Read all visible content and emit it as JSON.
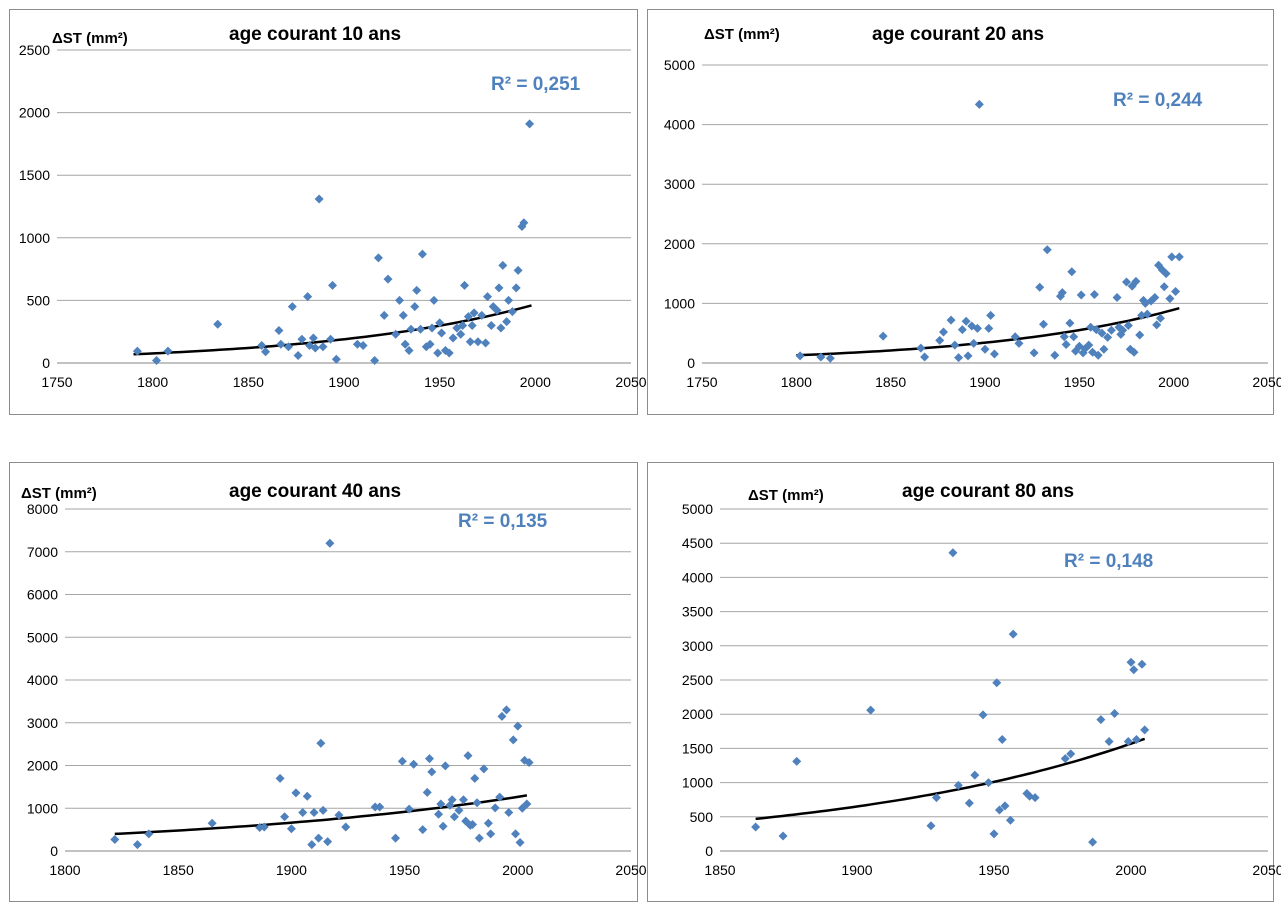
{
  "colors": {
    "point": "#4f81bd",
    "trend": "#000000",
    "grid": "#a6a6a6",
    "r2": "#4f81bd"
  },
  "chart_data": [
    {
      "type": "scatter",
      "title": "age courant 10 ans",
      "ylabel": "ΔST (mm²)",
      "xlabel": "",
      "annotation": "R² = 0,251",
      "xlim": [
        1750,
        2050
      ],
      "xticks": [
        1750,
        1800,
        1850,
        1900,
        1950,
        2000,
        2050
      ],
      "ylim": [
        0,
        2500
      ],
      "yticks": [
        0,
        500,
        1000,
        1500,
        2000,
        2500
      ],
      "trend": {
        "type": "exponential",
        "x": [
          1790,
          1998
        ],
        "y": [
          70,
          460
        ]
      },
      "points": [
        [
          1792,
          95
        ],
        [
          1802,
          20
        ],
        [
          1808,
          95
        ],
        [
          1834,
          310
        ],
        [
          1857,
          140
        ],
        [
          1859,
          90
        ],
        [
          1866,
          260
        ],
        [
          1867,
          150
        ],
        [
          1871,
          130
        ],
        [
          1873,
          450
        ],
        [
          1876,
          60
        ],
        [
          1878,
          190
        ],
        [
          1881,
          530
        ],
        [
          1882,
          140
        ],
        [
          1884,
          200
        ],
        [
          1885,
          120
        ],
        [
          1887,
          1310
        ],
        [
          1889,
          130
        ],
        [
          1893,
          190
        ],
        [
          1894,
          620
        ],
        [
          1896,
          30
        ],
        [
          1907,
          150
        ],
        [
          1910,
          140
        ],
        [
          1916,
          20
        ],
        [
          1918,
          840
        ],
        [
          1921,
          380
        ],
        [
          1923,
          670
        ],
        [
          1927,
          230
        ],
        [
          1929,
          500
        ],
        [
          1931,
          380
        ],
        [
          1932,
          150
        ],
        [
          1934,
          100
        ],
        [
          1935,
          270
        ],
        [
          1937,
          450
        ],
        [
          1938,
          580
        ],
        [
          1940,
          270
        ],
        [
          1941,
          870
        ],
        [
          1943,
          130
        ],
        [
          1945,
          150
        ],
        [
          1946,
          280
        ],
        [
          1947,
          500
        ],
        [
          1949,
          80
        ],
        [
          1950,
          320
        ],
        [
          1951,
          240
        ],
        [
          1953,
          100
        ],
        [
          1955,
          80
        ],
        [
          1957,
          200
        ],
        [
          1959,
          280
        ],
        [
          1961,
          230
        ],
        [
          1962,
          300
        ],
        [
          1963,
          620
        ],
        [
          1965,
          370
        ],
        [
          1966,
          170
        ],
        [
          1967,
          300
        ],
        [
          1968,
          400
        ],
        [
          1970,
          170
        ],
        [
          1972,
          380
        ],
        [
          1974,
          160
        ],
        [
          1975,
          530
        ],
        [
          1977,
          300
        ],
        [
          1978,
          450
        ],
        [
          1980,
          420
        ],
        [
          1981,
          600
        ],
        [
          1982,
          280
        ],
        [
          1983,
          780
        ],
        [
          1985,
          330
        ],
        [
          1986,
          500
        ],
        [
          1988,
          410
        ],
        [
          1990,
          600
        ],
        [
          1991,
          740
        ],
        [
          1993,
          1090
        ],
        [
          1994,
          1120
        ],
        [
          1997,
          1910
        ]
      ]
    },
    {
      "type": "scatter",
      "title": "age courant 20 ans",
      "ylabel": "ΔST (mm²)",
      "xlabel": "",
      "annotation": "R² = 0,244",
      "xlim": [
        1750,
        2050
      ],
      "xticks": [
        1750,
        1800,
        1850,
        1900,
        1950,
        2000,
        2050
      ],
      "ylim": [
        0,
        5000
      ],
      "yticks": [
        0,
        1000,
        2000,
        3000,
        4000,
        5000
      ],
      "trend": {
        "type": "exponential",
        "x": [
          1800,
          2003
        ],
        "y": [
          130,
          920
        ]
      },
      "points": [
        [
          1802,
          120
        ],
        [
          1813,
          100
        ],
        [
          1818,
          80
        ],
        [
          1846,
          450
        ],
        [
          1866,
          250
        ],
        [
          1868,
          100
        ],
        [
          1876,
          380
        ],
        [
          1878,
          520
        ],
        [
          1882,
          720
        ],
        [
          1884,
          300
        ],
        [
          1886,
          90
        ],
        [
          1888,
          560
        ],
        [
          1890,
          700
        ],
        [
          1891,
          120
        ],
        [
          1893,
          620
        ],
        [
          1894,
          330
        ],
        [
          1896,
          580
        ],
        [
          1897,
          4340
        ],
        [
          1900,
          230
        ],
        [
          1902,
          580
        ],
        [
          1903,
          800
        ],
        [
          1905,
          150
        ],
        [
          1916,
          440
        ],
        [
          1918,
          330
        ],
        [
          1926,
          170
        ],
        [
          1929,
          1270
        ],
        [
          1931,
          650
        ],
        [
          1933,
          1900
        ],
        [
          1937,
          130
        ],
        [
          1940,
          1120
        ],
        [
          1941,
          1180
        ],
        [
          1942,
          440
        ],
        [
          1943,
          310
        ],
        [
          1945,
          670
        ],
        [
          1946,
          1530
        ],
        [
          1947,
          440
        ],
        [
          1948,
          200
        ],
        [
          1950,
          280
        ],
        [
          1951,
          1140
        ],
        [
          1952,
          170
        ],
        [
          1953,
          240
        ],
        [
          1955,
          300
        ],
        [
          1956,
          600
        ],
        [
          1957,
          180
        ],
        [
          1958,
          1150
        ],
        [
          1959,
          560
        ],
        [
          1960,
          130
        ],
        [
          1962,
          500
        ],
        [
          1963,
          230
        ],
        [
          1965,
          430
        ],
        [
          1967,
          550
        ],
        [
          1970,
          1100
        ],
        [
          1971,
          600
        ],
        [
          1972,
          480
        ],
        [
          1973,
          550
        ],
        [
          1975,
          1360
        ],
        [
          1976,
          630
        ],
        [
          1977,
          230
        ],
        [
          1978,
          1290
        ],
        [
          1979,
          180
        ],
        [
          1980,
          1370
        ],
        [
          1982,
          470
        ],
        [
          1983,
          800
        ],
        [
          1984,
          1050
        ],
        [
          1985,
          1000
        ],
        [
          1986,
          820
        ],
        [
          1988,
          1040
        ],
        [
          1990,
          1100
        ],
        [
          1991,
          640
        ],
        [
          1992,
          1640
        ],
        [
          1993,
          750
        ],
        [
          1994,
          1560
        ],
        [
          1995,
          1280
        ],
        [
          1996,
          1500
        ],
        [
          1998,
          1080
        ],
        [
          1999,
          1780
        ],
        [
          2001,
          1200
        ],
        [
          2003,
          1780
        ]
      ]
    },
    {
      "type": "scatter",
      "title": "age courant 40 ans",
      "ylabel": "ΔST (mm²)",
      "xlabel": "",
      "annotation": "R² = 0,135",
      "xlim": [
        1800,
        2050
      ],
      "xticks": [
        1800,
        1850,
        1900,
        1950,
        2000,
        2050
      ],
      "ylim": [
        0,
        8000
      ],
      "yticks": [
        0,
        1000,
        2000,
        3000,
        4000,
        5000,
        6000,
        7000,
        8000
      ],
      "trend": {
        "type": "exponential",
        "x": [
          1822,
          2004
        ],
        "y": [
          400,
          1300
        ]
      },
      "points": [
        [
          1822,
          270
        ],
        [
          1832,
          150
        ],
        [
          1837,
          400
        ],
        [
          1865,
          650
        ],
        [
          1886,
          550
        ],
        [
          1888,
          560
        ],
        [
          1895,
          1700
        ],
        [
          1897,
          800
        ],
        [
          1900,
          520
        ],
        [
          1902,
          1360
        ],
        [
          1905,
          900
        ],
        [
          1907,
          1280
        ],
        [
          1909,
          150
        ],
        [
          1910,
          900
        ],
        [
          1912,
          300
        ],
        [
          1913,
          2520
        ],
        [
          1914,
          950
        ],
        [
          1916,
          220
        ],
        [
          1917,
          7200
        ],
        [
          1921,
          840
        ],
        [
          1924,
          560
        ],
        [
          1937,
          1030
        ],
        [
          1939,
          1030
        ],
        [
          1946,
          300
        ],
        [
          1949,
          2100
        ],
        [
          1952,
          980
        ],
        [
          1954,
          2030
        ],
        [
          1958,
          500
        ],
        [
          1960,
          1370
        ],
        [
          1961,
          2160
        ],
        [
          1962,
          1850
        ],
        [
          1965,
          860
        ],
        [
          1966,
          1100
        ],
        [
          1967,
          580
        ],
        [
          1968,
          1990
        ],
        [
          1970,
          1070
        ],
        [
          1971,
          1200
        ],
        [
          1972,
          800
        ],
        [
          1974,
          950
        ],
        [
          1976,
          1200
        ],
        [
          1977,
          700
        ],
        [
          1978,
          2230
        ],
        [
          1979,
          600
        ],
        [
          1980,
          620
        ],
        [
          1981,
          1700
        ],
        [
          1982,
          1130
        ],
        [
          1983,
          300
        ],
        [
          1985,
          1920
        ],
        [
          1987,
          650
        ],
        [
          1988,
          400
        ],
        [
          1990,
          1010
        ],
        [
          1992,
          1260
        ],
        [
          1993,
          3150
        ],
        [
          1995,
          3300
        ],
        [
          1996,
          900
        ],
        [
          1998,
          2600
        ],
        [
          1999,
          400
        ],
        [
          2000,
          2920
        ],
        [
          2001,
          200
        ],
        [
          2002,
          1000
        ],
        [
          2003,
          2120
        ],
        [
          2004,
          1100
        ],
        [
          2005,
          2070
        ]
      ]
    },
    {
      "type": "scatter",
      "title": "age courant 80 ans",
      "ylabel": "ΔST (mm²)",
      "xlabel": "",
      "annotation": "R² = 0,148",
      "xlim": [
        1850,
        2050
      ],
      "xticks": [
        1850,
        1900,
        1950,
        2000,
        2050
      ],
      "ylim": [
        0,
        5000
      ],
      "yticks": [
        0,
        500,
        1000,
        1500,
        2000,
        2500,
        3000,
        3500,
        4000,
        4500,
        5000
      ],
      "trend": {
        "type": "exponential",
        "x": [
          1863,
          2005
        ],
        "y": [
          470,
          1640
        ]
      },
      "points": [
        [
          1863,
          350
        ],
        [
          1873,
          220
        ],
        [
          1878,
          1310
        ],
        [
          1905,
          2060
        ],
        [
          1927,
          370
        ],
        [
          1929,
          780
        ],
        [
          1935,
          4360
        ],
        [
          1937,
          960
        ],
        [
          1941,
          700
        ],
        [
          1943,
          1110
        ],
        [
          1946,
          1990
        ],
        [
          1948,
          1000
        ],
        [
          1950,
          250
        ],
        [
          1951,
          2460
        ],
        [
          1952,
          600
        ],
        [
          1953,
          1630
        ],
        [
          1954,
          660
        ],
        [
          1956,
          450
        ],
        [
          1957,
          3170
        ],
        [
          1962,
          840
        ],
        [
          1963,
          800
        ],
        [
          1965,
          780
        ],
        [
          1976,
          1350
        ],
        [
          1978,
          1420
        ],
        [
          1986,
          130
        ],
        [
          1989,
          1920
        ],
        [
          1992,
          1600
        ],
        [
          1994,
          2010
        ],
        [
          1999,
          1600
        ],
        [
          2000,
          2760
        ],
        [
          2001,
          2650
        ],
        [
          2002,
          1630
        ],
        [
          2004,
          2730
        ],
        [
          2005,
          1770
        ]
      ]
    }
  ]
}
